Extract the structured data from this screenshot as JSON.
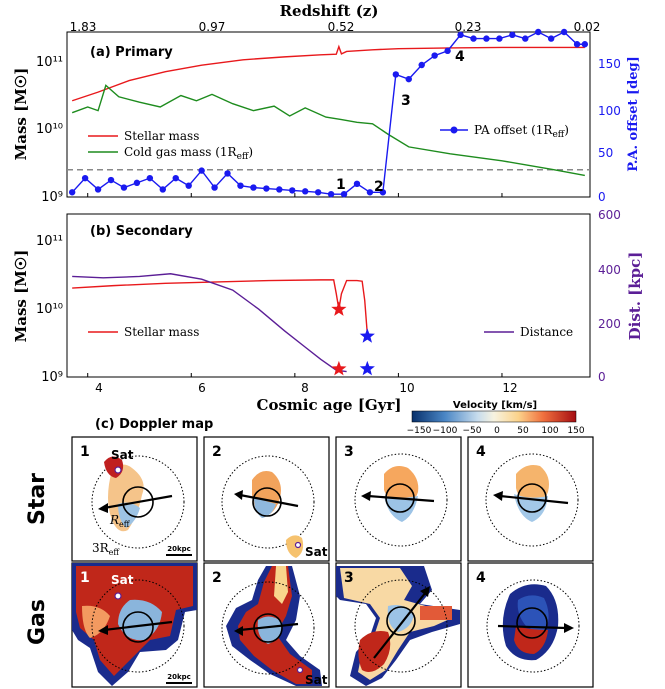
{
  "top_axis": {
    "label": "Redshift (z)",
    "ticks": [
      "1.83",
      "0.97",
      "0.52",
      "0.23",
      "0.02"
    ]
  },
  "panel_a": {
    "title": "(a) Primary",
    "ylabel_left": "Mass [M☉]",
    "ylabel_right": "P.A. offset [deg]",
    "left_ticks": [
      "10¹¹",
      "10¹⁰",
      "10⁹"
    ],
    "right_ticks": [
      "150",
      "100",
      "50",
      "0"
    ],
    "legend": [
      "Stellar mass",
      "Cold gas mass (1R",
      "PA offset (1R"
    ],
    "legend_sub": "eff",
    "point_labels": [
      "1",
      "2",
      "3",
      "4"
    ],
    "colors": {
      "stellar": "#e8191c",
      "gas": "#1e8c1e",
      "pa": "#1a1af0",
      "ref": "#888888"
    }
  },
  "panel_b": {
    "title": "(b) Secondary",
    "ylabel_left": "Mass [M☉]",
    "ylabel_right": "Dist. [kpc]",
    "left_ticks": [
      "10¹¹",
      "10¹⁰",
      "10⁹"
    ],
    "right_ticks": [
      "600",
      "400",
      "200",
      "0"
    ],
    "legend": [
      "Stellar mass",
      "Distance"
    ],
    "colors": {
      "stellar": "#e8191c",
      "distance": "#5b1e96",
      "dist_axis": "#5b1e96"
    }
  },
  "bottom_axis": {
    "label": "Cosmic age [Gyr]",
    "ticks": [
      "4",
      "6",
      "8",
      "10",
      "12"
    ]
  },
  "panel_c": {
    "title": "(c) Doppler map",
    "colorbar_label": "Velocity [km/s]",
    "colorbar_ticks": [
      "−150",
      "−100",
      "−50",
      "0",
      "50",
      "100",
      "150"
    ],
    "row_labels": [
      "Star",
      "Gas"
    ],
    "panel_numbers": [
      "1",
      "2",
      "3",
      "4"
    ],
    "sat_label": "Sat",
    "reff_label": "R",
    "reff_sub": "eff",
    "three_reff_label": "3R",
    "scale_label": "20kpc"
  },
  "chart_data": [
    {
      "type": "line",
      "title": "(a) Primary",
      "xlabel": "Cosmic age [Gyr]",
      "ylabel": "Mass [M☉]",
      "y2label": "P.A. offset [deg]",
      "xlim": [
        3.6,
        13.7
      ],
      "ylim": [
        1000000000.0,
        200000000000.0
      ],
      "yscale": "log",
      "y2lim": [
        0,
        175
      ],
      "series": [
        {
          "name": "Stellar mass",
          "axis": "left",
          "x": [
            3.7,
            4.2,
            4.8,
            5.5,
            6.2,
            7.0,
            7.8,
            8.5,
            8.8,
            8.85,
            8.9,
            9.0,
            9.5,
            10.0,
            11.0,
            12.0,
            13.0,
            13.6
          ],
          "y": [
            22000000000.0,
            29000000000.0,
            42000000000.0,
            56000000000.0,
            69000000000.0,
            82000000000.0,
            90000000000.0,
            96000000000.0,
            98000000000.0,
            125000000000.0,
            99000000000.0,
            107000000000.0,
            113000000000.0,
            117000000000.0,
            120000000000.0,
            122000000000.0,
            122000000000.0,
            122000000000.0
          ]
        },
        {
          "name": "Cold gas mass (1R_eff)",
          "axis": "left",
          "x": [
            3.7,
            4.0,
            4.2,
            4.35,
            4.6,
            5.0,
            5.4,
            5.8,
            6.1,
            6.4,
            6.8,
            7.2,
            7.6,
            7.9,
            8.2,
            8.6,
            8.9,
            9.2,
            9.5,
            9.8,
            10.2,
            11.0,
            12.0,
            13.0,
            13.6
          ],
          "y": [
            15000000000.0,
            18000000000.0,
            16000000000.0,
            36000000000.0,
            25000000000.0,
            21000000000.0,
            18000000000.0,
            26000000000.0,
            22000000000.0,
            27000000000.0,
            20000000000.0,
            16000000000.0,
            18500000000.0,
            13500000000.0,
            17500000000.0,
            13000000000.0,
            12000000000.0,
            11000000000.0,
            10500000000.0,
            7500000000.0,
            5000000000.0,
            4000000000.0,
            3200000000.0,
            2400000000.0,
            2000000000.0
          ]
        },
        {
          "name": "PA offset (1R_eff)",
          "axis": "right",
          "x": [
            3.7,
            3.95,
            4.2,
            4.45,
            4.7,
            4.95,
            5.2,
            5.45,
            5.7,
            5.95,
            6.2,
            6.45,
            6.7,
            6.95,
            7.2,
            7.45,
            7.7,
            7.95,
            8.2,
            8.45,
            8.7,
            8.95,
            9.2,
            9.45,
            9.7,
            9.95,
            10.2,
            10.45,
            10.7,
            10.95,
            11.2,
            11.45,
            11.7,
            11.95,
            12.2,
            12.45,
            12.7,
            12.95,
            13.2,
            13.45,
            13.6
          ],
          "y": [
            5,
            20,
            8,
            18,
            10,
            15,
            20,
            8,
            20,
            12,
            28,
            10,
            25,
            12,
            10,
            9,
            8,
            7,
            6,
            5,
            3,
            3,
            14,
            5,
            5,
            130,
            125,
            140,
            150,
            155,
            172,
            168,
            168,
            168,
            172,
            168,
            175,
            168,
            175,
            162,
            162
          ]
        }
      ],
      "reference_line": {
        "axis": "left",
        "y": 2400000000.0,
        "style": "dashed"
      },
      "annotations": [
        "1",
        "2",
        "3",
        "4"
      ]
    },
    {
      "type": "line",
      "title": "(b) Secondary",
      "xlabel": "Cosmic age [Gyr]",
      "ylabel": "Mass [M☉]",
      "y2label": "Dist. [kpc]",
      "xlim": [
        3.6,
        13.7
      ],
      "ylim": [
        1000000000.0,
        200000000000.0
      ],
      "yscale": "log",
      "y2lim": [
        0,
        600
      ],
      "series": [
        {
          "name": "Stellar mass",
          "axis": "left",
          "x": [
            3.7,
            4.5,
            5.5,
            6.5,
            7.5,
            8.5,
            8.75,
            8.8,
            8.85,
            8.9,
            9.0,
            9.2,
            9.3,
            9.35,
            9.4
          ],
          "y": [
            18000000000.0,
            19500000000.0,
            21000000000.0,
            22000000000.0,
            23000000000.0,
            23500000000.0,
            23500000000.0,
            15000000000.0,
            9000000000.0,
            15000000000.0,
            23000000000.0,
            23000000000.0,
            22500000000.0,
            12000000000.0,
            4000000000.0
          ]
        },
        {
          "name": "Distance",
          "axis": "right",
          "x": [
            3.7,
            4.3,
            5.0,
            5.6,
            6.2,
            6.8,
            7.3,
            7.8,
            8.2,
            8.5,
            8.8,
            9.0
          ],
          "y": [
            370,
            365,
            370,
            380,
            360,
            320,
            250,
            170,
            110,
            65,
            25,
            20
          ]
        }
      ],
      "markers": [
        {
          "series": "Stellar mass",
          "x": 8.85,
          "y": 9000000000.0,
          "symbol": "star",
          "color": "#e8191c"
        },
        {
          "series": "Stellar mass",
          "x": 8.85,
          "y": 1300000000.0,
          "symbol": "star",
          "color": "#e8191c"
        },
        {
          "series": "Distance",
          "x": 9.4,
          "y": 150,
          "symbol": "star",
          "color": "#1a1af0"
        },
        {
          "series": "Distance",
          "x": 9.4,
          "y": 30,
          "symbol": "star",
          "color": "#1a1af0"
        }
      ]
    }
  ]
}
